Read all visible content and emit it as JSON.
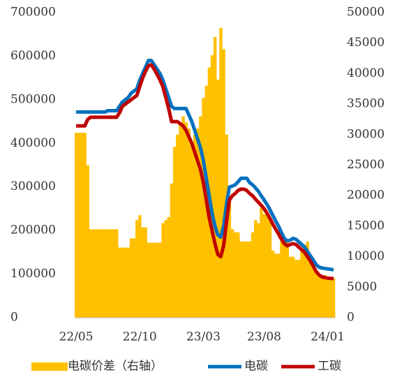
{
  "chart_data": {
    "type": "combo",
    "categories": [
      "22/05",
      null,
      null,
      null,
      null,
      null,
      null,
      null,
      null,
      null,
      null,
      null,
      null,
      null,
      null,
      null,
      null,
      null,
      null,
      null,
      null,
      null,
      "22/10",
      null,
      null,
      null,
      null,
      null,
      null,
      null,
      null,
      null,
      null,
      null,
      null,
      null,
      null,
      null,
      null,
      null,
      null,
      null,
      null,
      null,
      "23/03",
      null,
      null,
      null,
      null,
      null,
      null,
      null,
      null,
      null,
      null,
      null,
      null,
      null,
      null,
      null,
      null,
      null,
      null,
      null,
      null,
      "23/08",
      null,
      null,
      null,
      null,
      null,
      null,
      null,
      null,
      null,
      null,
      null,
      null,
      null,
      null,
      null,
      null,
      null,
      null,
      null,
      null,
      null,
      "24/01",
      null,
      null
    ],
    "series": [
      {
        "name": "电碳价差（右轴）",
        "type": "bar",
        "axis": "y2",
        "color": "#FFC000",
        "values": [
          30300,
          30300,
          30300,
          30300,
          25000,
          14500,
          14500,
          14500,
          14500,
          14500,
          14500,
          14500,
          14500,
          14500,
          14500,
          11500,
          11500,
          11500,
          11500,
          13000,
          13000,
          16000,
          16800,
          14800,
          14800,
          12300,
          12300,
          12300,
          12300,
          12300,
          15500,
          16000,
          16500,
          22000,
          28000,
          30000,
          32000,
          33000,
          32000,
          31000,
          28000,
          30000,
          31000,
          33000,
          36000,
          38000,
          41000,
          43000,
          46000,
          39000,
          47500,
          44000,
          30000,
          20000,
          14500,
          14000,
          14000,
          12500,
          12500,
          12500,
          12500,
          14000,
          16000,
          15500,
          18000,
          17000,
          17000,
          16000,
          11000,
          10500,
          10500,
          12500,
          12500,
          12500,
          10000,
          10000,
          9500,
          9500,
          11000,
          12000,
          12500,
          9000,
          9000,
          7500,
          7000,
          7000,
          7000,
          6500,
          6500,
          6500
        ]
      },
      {
        "name": "电碳",
        "type": "line",
        "color": "#0070C0",
        "values": [
          472000,
          472000,
          472000,
          472000,
          472000,
          472000,
          472000,
          472000,
          472000,
          472000,
          472000,
          475000,
          475000,
          475000,
          475000,
          485000,
          495000,
          500000,
          505000,
          515000,
          520000,
          525000,
          545000,
          560000,
          575000,
          590000,
          590000,
          580000,
          570000,
          560000,
          545000,
          525000,
          505000,
          485000,
          480000,
          480000,
          480000,
          480000,
          480000,
          465000,
          450000,
          430000,
          410000,
          390000,
          360000,
          320000,
          280000,
          240000,
          210000,
          190000,
          185000,
          210000,
          260000,
          300000,
          302000,
          305000,
          312000,
          320000,
          320000,
          320000,
          310000,
          305000,
          298000,
          290000,
          280000,
          270000,
          260000,
          248000,
          235000,
          222000,
          210000,
          195000,
          182000,
          176000,
          178000,
          182000,
          180000,
          174000,
          168000,
          162000,
          152000,
          142000,
          132000,
          122000,
          116000,
          114000,
          113000,
          112000,
          111000,
          110000
        ]
      },
      {
        "name": "工碳",
        "type": "line",
        "color": "#C00000",
        "values": [
          440000,
          440000,
          440000,
          440000,
          455000,
          460000,
          460000,
          460000,
          460000,
          460000,
          460000,
          460000,
          460000,
          460000,
          460000,
          470000,
          485000,
          490000,
          495000,
          500000,
          505000,
          510000,
          530000,
          550000,
          565000,
          578000,
          580000,
          570000,
          558000,
          545000,
          530000,
          505000,
          480000,
          450000,
          450000,
          450000,
          445000,
          440000,
          430000,
          415000,
          400000,
          380000,
          360000,
          340000,
          310000,
          270000,
          230000,
          200000,
          170000,
          145000,
          140000,
          165000,
          220000,
          270000,
          280000,
          285000,
          292000,
          295000,
          295000,
          292000,
          285000,
          280000,
          272000,
          265000,
          258000,
          250000,
          240000,
          228000,
          215000,
          203000,
          192000,
          180000,
          170000,
          165000,
          168000,
          170000,
          168000,
          162000,
          156000,
          150000,
          140000,
          130000,
          118000,
          106000,
          98000,
          94000,
          92000,
          91000,
          90000,
          90000
        ]
      }
    ],
    "ylim": [
      0,
      700000
    ],
    "yticks": [
      0,
      100000,
      200000,
      300000,
      400000,
      500000,
      600000,
      700000
    ],
    "y2lim": [
      0,
      50000
    ],
    "y2ticks": [
      0,
      5000,
      10000,
      15000,
      20000,
      25000,
      30000,
      35000,
      40000,
      45000,
      50000
    ],
    "legend": "bottom"
  }
}
